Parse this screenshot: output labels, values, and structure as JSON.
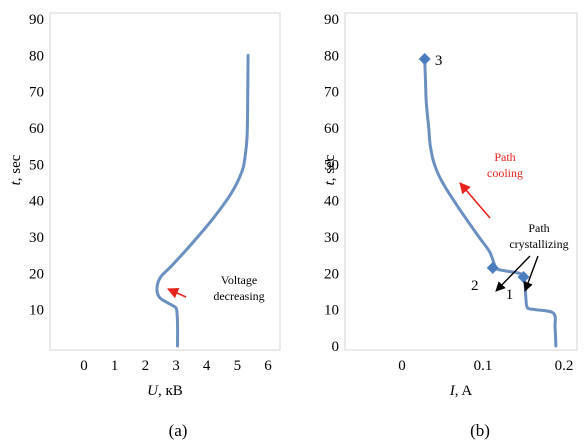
{
  "chart_data": [
    {
      "type": "line",
      "panel_label": "(a)",
      "xlabel": {
        "italic": "U",
        "rest": ", кВ"
      },
      "ylabel": {
        "italic": "t",
        "rest": ", sec"
      },
      "xlim": [
        0,
        6
      ],
      "ylim": [
        0,
        90
      ],
      "x_ticks": [
        "0",
        "1",
        "2",
        "3",
        "4",
        "5",
        "6"
      ],
      "y_ticks": [
        "10",
        "20",
        "30",
        "40",
        "50",
        "60",
        "70",
        "80",
        "90"
      ],
      "grid": false,
      "series": [
        {
          "color": "#6a8fc0",
          "x": [
            3.05,
            3.05,
            3.02,
            2.92,
            2.7,
            2.45,
            2.38,
            2.5,
            2.85,
            3.5,
            4.2,
            4.8,
            5.15,
            5.25,
            5.32,
            5.34,
            5.35
          ],
          "y": [
            0,
            6,
            10,
            11,
            12,
            13.5,
            16,
            19,
            22,
            28,
            35,
            42,
            48,
            52,
            58,
            70,
            80
          ]
        }
      ],
      "annotations": [
        {
          "lines": [
            "Voltage",
            "decreasing"
          ],
          "color": "#000000"
        }
      ]
    },
    {
      "type": "line",
      "panel_label": "(b)",
      "xlabel": {
        "italic": "I",
        "rest": ", A"
      },
      "ylabel": {
        "italic": "t",
        "rest": ", sec"
      },
      "xlim": [
        0,
        0.2
      ],
      "ylim": [
        0,
        90
      ],
      "x_ticks": [
        "0",
        "0.1",
        "0.2"
      ],
      "y_ticks": [
        "0",
        "10",
        "20",
        "30",
        "40",
        "50",
        "60",
        "70",
        "80",
        "90"
      ],
      "grid": false,
      "series": [
        {
          "color": "#6a8fc0",
          "x": [
            0.19,
            0.189,
            0.187,
            0.165,
            0.155,
            0.153,
            0.152,
            0.15,
            0.145,
            0.12,
            0.115,
            0.108,
            0.095,
            0.07,
            0.05,
            0.04,
            0.035,
            0.033,
            0.03,
            0.029,
            0.028
          ],
          "y": [
            0,
            5,
            9,
            10,
            10.5,
            13,
            17,
            19,
            20,
            21,
            22,
            26,
            30,
            38,
            45,
            50,
            55,
            60,
            67,
            73,
            79
          ]
        }
      ],
      "markers": [
        {
          "label": "1",
          "x": 0.15,
          "y": 19
        },
        {
          "label": "2",
          "x": 0.112,
          "y": 21.5
        },
        {
          "label": "3",
          "x": 0.028,
          "y": 79
        }
      ],
      "annotations": [
        {
          "lines": [
            "Path",
            "cooling"
          ],
          "color": "#e8231d"
        },
        {
          "lines": [
            "Path",
            "crystallizing"
          ],
          "color": "#000000"
        }
      ]
    }
  ]
}
